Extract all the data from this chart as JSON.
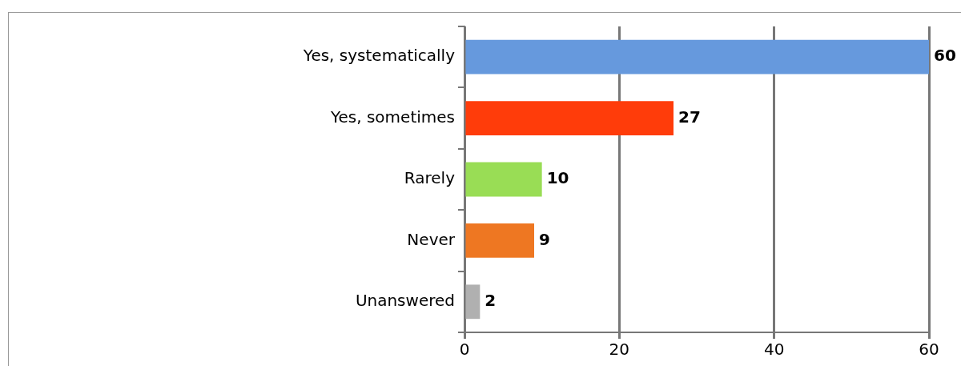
{
  "chart_data": {
    "type": "bar",
    "orientation": "horizontal",
    "categories": [
      "Yes, systematically",
      "Yes, sometimes",
      "Rarely",
      "Never",
      "Unanswered"
    ],
    "values": [
      60,
      27,
      10,
      9,
      2
    ],
    "colors": [
      "#6699dd",
      "#ff3c0a",
      "#99dd55",
      "#ee7722",
      "#b0b0b0"
    ],
    "xlim": [
      0,
      60
    ],
    "xticks": [
      0,
      20,
      40,
      60
    ],
    "grid": "x",
    "data_labels": true,
    "legend": false
  }
}
